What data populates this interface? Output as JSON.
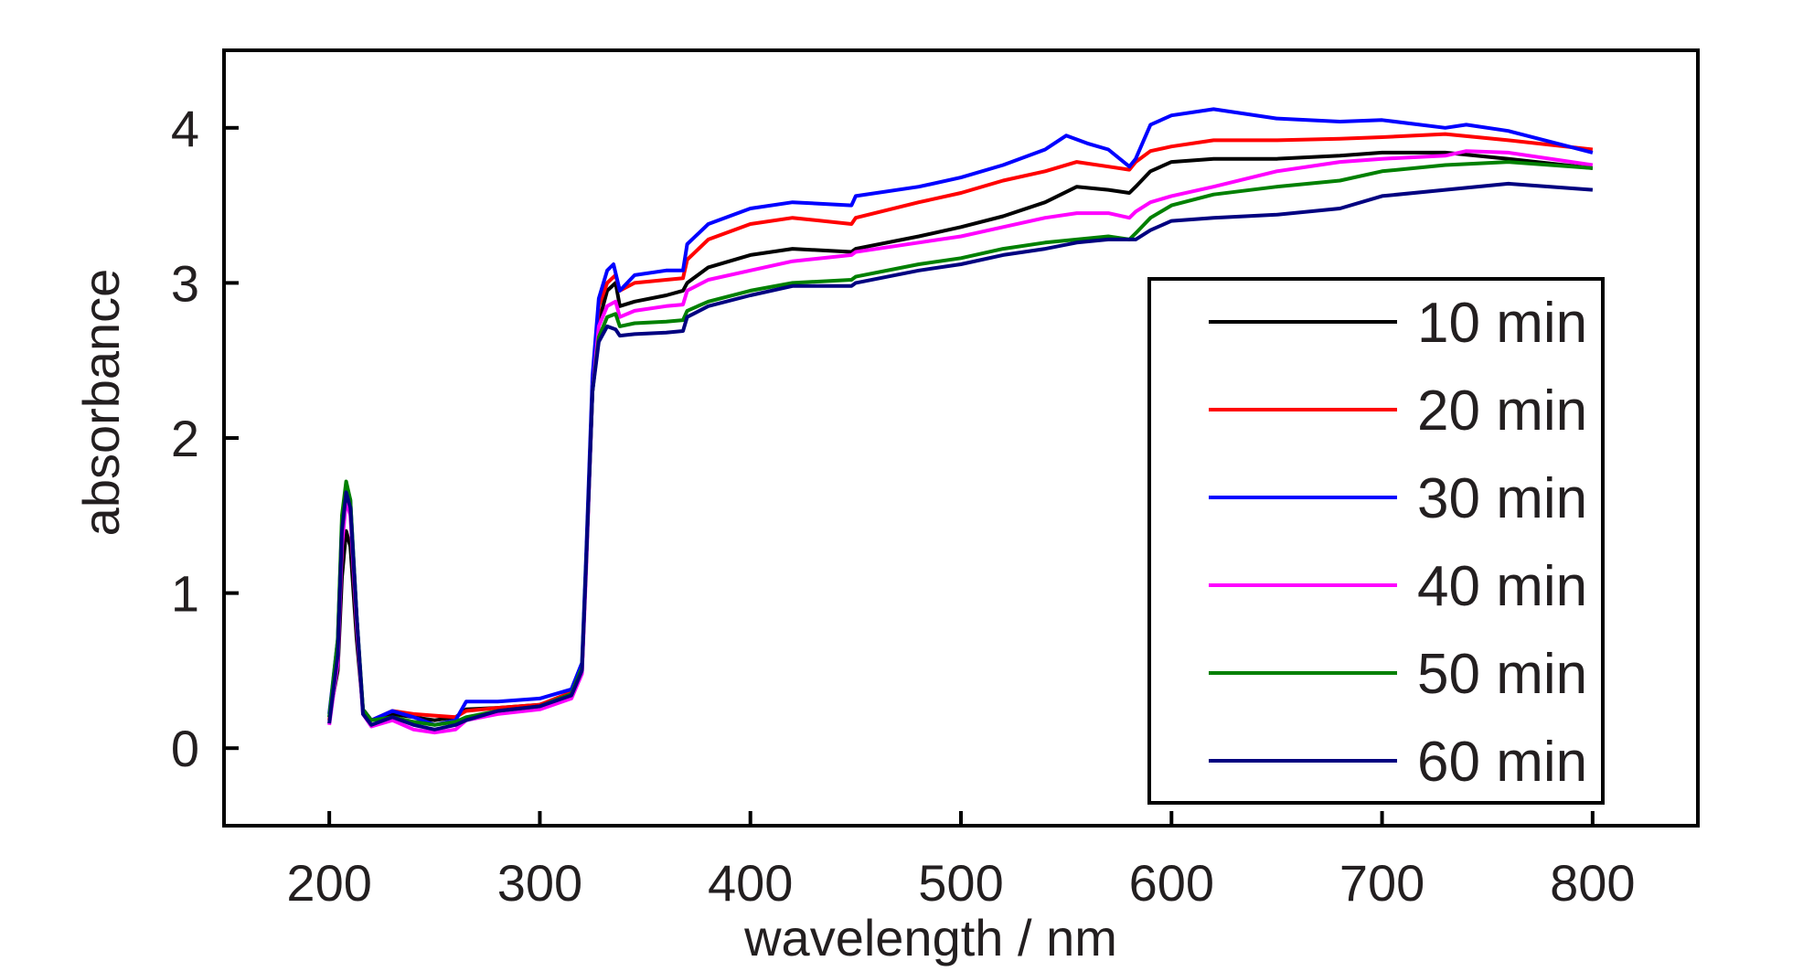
{
  "chart_data": {
    "type": "line",
    "xlabel": "wavelength / nm",
    "ylabel": "absorbance",
    "xlim": [
      150,
      850
    ],
    "ylim": [
      -0.5,
      4.5
    ],
    "x_ticks": [
      200,
      300,
      400,
      500,
      600,
      700,
      800
    ],
    "y_ticks": [
      0,
      1,
      2,
      3,
      4
    ],
    "grid": false,
    "legend_position": "lower-right",
    "series": [
      {
        "name": "10 min",
        "color": "#000000",
        "points": [
          [
            200,
            0.2
          ],
          [
            204,
            0.5
          ],
          [
            206,
            1.1
          ],
          [
            208,
            1.4
          ],
          [
            210,
            1.3
          ],
          [
            213,
            0.7
          ],
          [
            216,
            0.25
          ],
          [
            220,
            0.18
          ],
          [
            230,
            0.22
          ],
          [
            240,
            0.2
          ],
          [
            250,
            0.18
          ],
          [
            260,
            0.2
          ],
          [
            265,
            0.25
          ],
          [
            280,
            0.26
          ],
          [
            300,
            0.28
          ],
          [
            315,
            0.35
          ],
          [
            320,
            0.5
          ],
          [
            322,
            1.2
          ],
          [
            325,
            2.3
          ],
          [
            328,
            2.75
          ],
          [
            332,
            2.95
          ],
          [
            336,
            3.0
          ],
          [
            338,
            2.85
          ],
          [
            345,
            2.88
          ],
          [
            360,
            2.92
          ],
          [
            368,
            2.95
          ],
          [
            370,
            3.0
          ],
          [
            380,
            3.1
          ],
          [
            400,
            3.18
          ],
          [
            420,
            3.22
          ],
          [
            448,
            3.2
          ],
          [
            450,
            3.22
          ],
          [
            480,
            3.3
          ],
          [
            500,
            3.36
          ],
          [
            520,
            3.43
          ],
          [
            540,
            3.52
          ],
          [
            555,
            3.62
          ],
          [
            570,
            3.6
          ],
          [
            580,
            3.58
          ],
          [
            583,
            3.62
          ],
          [
            590,
            3.72
          ],
          [
            600,
            3.78
          ],
          [
            620,
            3.8
          ],
          [
            650,
            3.8
          ],
          [
            680,
            3.82
          ],
          [
            700,
            3.84
          ],
          [
            730,
            3.84
          ],
          [
            760,
            3.8
          ],
          [
            800,
            3.74
          ]
        ]
      },
      {
        "name": "20 min",
        "color": "#ff0000",
        "points": [
          [
            200,
            0.18
          ],
          [
            204,
            0.6
          ],
          [
            206,
            1.4
          ],
          [
            208,
            1.68
          ],
          [
            210,
            1.55
          ],
          [
            213,
            0.8
          ],
          [
            216,
            0.25
          ],
          [
            220,
            0.18
          ],
          [
            230,
            0.24
          ],
          [
            240,
            0.22
          ],
          [
            250,
            0.21
          ],
          [
            260,
            0.2
          ],
          [
            265,
            0.24
          ],
          [
            280,
            0.26
          ],
          [
            300,
            0.28
          ],
          [
            315,
            0.36
          ],
          [
            320,
            0.5
          ],
          [
            322,
            1.2
          ],
          [
            325,
            2.35
          ],
          [
            328,
            2.85
          ],
          [
            332,
            3.0
          ],
          [
            336,
            3.05
          ],
          [
            338,
            2.95
          ],
          [
            345,
            3.0
          ],
          [
            360,
            3.02
          ],
          [
            368,
            3.03
          ],
          [
            370,
            3.15
          ],
          [
            380,
            3.28
          ],
          [
            400,
            3.38
          ],
          [
            420,
            3.42
          ],
          [
            448,
            3.38
          ],
          [
            450,
            3.42
          ],
          [
            480,
            3.52
          ],
          [
            500,
            3.58
          ],
          [
            520,
            3.66
          ],
          [
            540,
            3.72
          ],
          [
            555,
            3.78
          ],
          [
            570,
            3.75
          ],
          [
            580,
            3.73
          ],
          [
            583,
            3.78
          ],
          [
            590,
            3.85
          ],
          [
            600,
            3.88
          ],
          [
            620,
            3.92
          ],
          [
            650,
            3.92
          ],
          [
            680,
            3.93
          ],
          [
            700,
            3.94
          ],
          [
            730,
            3.96
          ],
          [
            760,
            3.92
          ],
          [
            800,
            3.86
          ]
        ]
      },
      {
        "name": "30 min",
        "color": "#0000ff",
        "points": [
          [
            200,
            0.22
          ],
          [
            204,
            0.7
          ],
          [
            206,
            1.45
          ],
          [
            208,
            1.7
          ],
          [
            210,
            1.6
          ],
          [
            213,
            0.85
          ],
          [
            216,
            0.25
          ],
          [
            220,
            0.18
          ],
          [
            230,
            0.24
          ],
          [
            240,
            0.2
          ],
          [
            250,
            0.15
          ],
          [
            260,
            0.18
          ],
          [
            265,
            0.3
          ],
          [
            280,
            0.3
          ],
          [
            300,
            0.32
          ],
          [
            315,
            0.38
          ],
          [
            320,
            0.55
          ],
          [
            322,
            1.25
          ],
          [
            325,
            2.4
          ],
          [
            328,
            2.9
          ],
          [
            332,
            3.08
          ],
          [
            335,
            3.12
          ],
          [
            338,
            2.95
          ],
          [
            345,
            3.05
          ],
          [
            360,
            3.08
          ],
          [
            368,
            3.08
          ],
          [
            370,
            3.25
          ],
          [
            380,
            3.38
          ],
          [
            400,
            3.48
          ],
          [
            420,
            3.52
          ],
          [
            448,
            3.5
          ],
          [
            450,
            3.56
          ],
          [
            480,
            3.62
          ],
          [
            500,
            3.68
          ],
          [
            520,
            3.76
          ],
          [
            540,
            3.86
          ],
          [
            550,
            3.95
          ],
          [
            560,
            3.9
          ],
          [
            570,
            3.86
          ],
          [
            580,
            3.75
          ],
          [
            583,
            3.8
          ],
          [
            590,
            4.02
          ],
          [
            600,
            4.08
          ],
          [
            620,
            4.12
          ],
          [
            650,
            4.06
          ],
          [
            680,
            4.04
          ],
          [
            700,
            4.05
          ],
          [
            730,
            4.0
          ],
          [
            740,
            4.02
          ],
          [
            760,
            3.98
          ],
          [
            800,
            3.84
          ]
        ]
      },
      {
        "name": "40 min",
        "color": "#ff00ff",
        "points": [
          [
            200,
            0.15
          ],
          [
            204,
            0.55
          ],
          [
            206,
            1.3
          ],
          [
            208,
            1.6
          ],
          [
            210,
            1.5
          ],
          [
            213,
            0.8
          ],
          [
            216,
            0.22
          ],
          [
            220,
            0.14
          ],
          [
            230,
            0.18
          ],
          [
            240,
            0.12
          ],
          [
            250,
            0.1
          ],
          [
            260,
            0.12
          ],
          [
            265,
            0.18
          ],
          [
            280,
            0.22
          ],
          [
            300,
            0.25
          ],
          [
            315,
            0.32
          ],
          [
            320,
            0.48
          ],
          [
            322,
            1.15
          ],
          [
            325,
            2.3
          ],
          [
            328,
            2.72
          ],
          [
            332,
            2.85
          ],
          [
            336,
            2.88
          ],
          [
            338,
            2.78
          ],
          [
            345,
            2.82
          ],
          [
            360,
            2.85
          ],
          [
            368,
            2.86
          ],
          [
            370,
            2.95
          ],
          [
            380,
            3.02
          ],
          [
            400,
            3.08
          ],
          [
            420,
            3.14
          ],
          [
            448,
            3.18
          ],
          [
            450,
            3.2
          ],
          [
            480,
            3.26
          ],
          [
            500,
            3.3
          ],
          [
            520,
            3.36
          ],
          [
            540,
            3.42
          ],
          [
            555,
            3.45
          ],
          [
            570,
            3.45
          ],
          [
            580,
            3.42
          ],
          [
            583,
            3.46
          ],
          [
            590,
            3.52
          ],
          [
            600,
            3.56
          ],
          [
            620,
            3.62
          ],
          [
            650,
            3.72
          ],
          [
            680,
            3.78
          ],
          [
            700,
            3.8
          ],
          [
            730,
            3.82
          ],
          [
            740,
            3.85
          ],
          [
            760,
            3.84
          ],
          [
            800,
            3.76
          ]
        ]
      },
      {
        "name": "50 min",
        "color": "#008000",
        "points": [
          [
            200,
            0.2
          ],
          [
            204,
            0.7
          ],
          [
            206,
            1.5
          ],
          [
            208,
            1.72
          ],
          [
            210,
            1.6
          ],
          [
            213,
            0.85
          ],
          [
            216,
            0.25
          ],
          [
            220,
            0.18
          ],
          [
            230,
            0.2
          ],
          [
            240,
            0.17
          ],
          [
            250,
            0.15
          ],
          [
            260,
            0.17
          ],
          [
            265,
            0.2
          ],
          [
            280,
            0.24
          ],
          [
            300,
            0.27
          ],
          [
            315,
            0.35
          ],
          [
            320,
            0.52
          ],
          [
            322,
            1.2
          ],
          [
            325,
            2.3
          ],
          [
            328,
            2.65
          ],
          [
            332,
            2.78
          ],
          [
            336,
            2.8
          ],
          [
            338,
            2.72
          ],
          [
            345,
            2.74
          ],
          [
            360,
            2.75
          ],
          [
            368,
            2.76
          ],
          [
            370,
            2.82
          ],
          [
            380,
            2.88
          ],
          [
            400,
            2.95
          ],
          [
            420,
            3.0
          ],
          [
            448,
            3.02
          ],
          [
            450,
            3.04
          ],
          [
            480,
            3.12
          ],
          [
            500,
            3.16
          ],
          [
            520,
            3.22
          ],
          [
            540,
            3.26
          ],
          [
            555,
            3.28
          ],
          [
            570,
            3.3
          ],
          [
            580,
            3.28
          ],
          [
            583,
            3.32
          ],
          [
            590,
            3.42
          ],
          [
            600,
            3.5
          ],
          [
            620,
            3.57
          ],
          [
            650,
            3.62
          ],
          [
            680,
            3.66
          ],
          [
            700,
            3.72
          ],
          [
            730,
            3.76
          ],
          [
            760,
            3.78
          ],
          [
            800,
            3.74
          ]
        ]
      },
      {
        "name": "60 min",
        "color": "#000080",
        "points": [
          [
            200,
            0.16
          ],
          [
            204,
            0.6
          ],
          [
            206,
            1.4
          ],
          [
            208,
            1.65
          ],
          [
            210,
            1.55
          ],
          [
            213,
            0.85
          ],
          [
            216,
            0.22
          ],
          [
            220,
            0.15
          ],
          [
            230,
            0.2
          ],
          [
            240,
            0.15
          ],
          [
            250,
            0.12
          ],
          [
            260,
            0.15
          ],
          [
            265,
            0.18
          ],
          [
            280,
            0.24
          ],
          [
            300,
            0.27
          ],
          [
            315,
            0.34
          ],
          [
            320,
            0.5
          ],
          [
            322,
            1.2
          ],
          [
            325,
            2.3
          ],
          [
            328,
            2.62
          ],
          [
            332,
            2.72
          ],
          [
            336,
            2.7
          ],
          [
            338,
            2.66
          ],
          [
            345,
            2.67
          ],
          [
            360,
            2.68
          ],
          [
            368,
            2.69
          ],
          [
            370,
            2.78
          ],
          [
            380,
            2.85
          ],
          [
            400,
            2.92
          ],
          [
            420,
            2.98
          ],
          [
            448,
            2.98
          ],
          [
            450,
            3.0
          ],
          [
            480,
            3.08
          ],
          [
            500,
            3.12
          ],
          [
            520,
            3.18
          ],
          [
            540,
            3.22
          ],
          [
            555,
            3.26
          ],
          [
            570,
            3.28
          ],
          [
            580,
            3.28
          ],
          [
            583,
            3.28
          ],
          [
            590,
            3.34
          ],
          [
            600,
            3.4
          ],
          [
            620,
            3.42
          ],
          [
            650,
            3.44
          ],
          [
            680,
            3.48
          ],
          [
            700,
            3.56
          ],
          [
            730,
            3.6
          ],
          [
            760,
            3.64
          ],
          [
            800,
            3.6
          ]
        ]
      }
    ]
  }
}
